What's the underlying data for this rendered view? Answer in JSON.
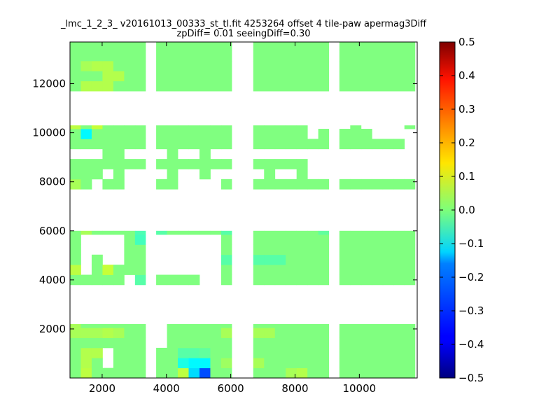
{
  "chart_data": {
    "type": "heatmap",
    "title": "_lmc_1_2_3_ v20161013_00333_st_tl.fit 4253264 offset 4 tile-paw apermag3Diff",
    "subtitle": "zpDiff= 0.01 seeingDiff=0.30",
    "xlabel": "",
    "ylabel": "",
    "xlim": [
      1000,
      11800
    ],
    "ylim": [
      0,
      13700
    ],
    "xticks": [
      2000,
      4000,
      6000,
      8000,
      10000
    ],
    "yticks": [
      2000,
      4000,
      6000,
      8000,
      10000,
      12000
    ],
    "colorbar": {
      "colormap": "jet",
      "vmin": -0.5,
      "vmax": 0.5,
      "ticks": [
        -0.5,
        -0.4,
        -0.3,
        -0.2,
        -0.1,
        0.0,
        0.1,
        0.2,
        0.3,
        0.4,
        0.5
      ],
      "tick_labels": [
        "−0.5",
        "−0.4",
        "−0.3",
        "−0.2",
        "−0.1",
        "0.0",
        "0.1",
        "0.2",
        "0.3",
        "0.4",
        "0.5"
      ]
    },
    "cell_width": 337,
    "cell_height": 410,
    "grid": false,
    "block_x_ranges": [
      [
        1000,
        3350
      ],
      [
        3680,
        6030
      ],
      [
        6700,
        9050
      ],
      [
        9380,
        11730
      ]
    ],
    "block_y_ranges": [
      [
        0,
        2200
      ],
      [
        3800,
        6000
      ],
      [
        7700,
        10300
      ],
      [
        11700,
        13700
      ]
    ],
    "base_value": 0.0,
    "missing_cells": [
      [
        1,
        10
      ],
      [
        1,
        11
      ],
      [
        1,
        12
      ],
      [
        1,
        13
      ],
      [
        2,
        12
      ],
      [
        2,
        13
      ],
      [
        3,
        11
      ],
      [
        3,
        12
      ],
      [
        3,
        13
      ],
      [
        4,
        11
      ],
      [
        4,
        12
      ],
      [
        4,
        13
      ],
      [
        8,
        3
      ],
      [
        8,
        4
      ],
      [
        8,
        5
      ],
      [
        8,
        10
      ],
      [
        8,
        11
      ],
      [
        8,
        12
      ],
      [
        8,
        13
      ],
      [
        9,
        10
      ],
      [
        9,
        11
      ],
      [
        9,
        12
      ],
      [
        9,
        13
      ],
      [
        10,
        10
      ],
      [
        10,
        11
      ],
      [
        10,
        12
      ],
      [
        10,
        13
      ],
      [
        11,
        10
      ],
      [
        11,
        11
      ],
      [
        11,
        12
      ],
      [
        11,
        13
      ],
      [
        12,
        9
      ],
      [
        12,
        10
      ],
      [
        12,
        11
      ],
      [
        12,
        12
      ],
      [
        12,
        13
      ],
      [
        13,
        9
      ],
      [
        13,
        10
      ],
      [
        13,
        11
      ],
      [
        13,
        12
      ],
      [
        13,
        13
      ],
      [
        3,
        1
      ],
      [
        3,
        2
      ],
      [
        5,
        7
      ],
      [
        5,
        8
      ],
      [
        5,
        9
      ],
      [
        4,
        27
      ],
      [
        5,
        27
      ],
      [
        6,
        27
      ],
      [
        7,
        27
      ],
      [
        8,
        27
      ],
      [
        12,
        27
      ],
      [
        0,
        22
      ],
      [
        1,
        22
      ],
      [
        2,
        22
      ],
      [
        5,
        22
      ],
      [
        6,
        22
      ],
      [
        8,
        22
      ],
      [
        10,
        22
      ],
      [
        11,
        22
      ],
      [
        13,
        22
      ],
      [
        14,
        22
      ],
      [
        15,
        22
      ],
      [
        16,
        22
      ],
      [
        17,
        22
      ],
      [
        18,
        22
      ],
      [
        19,
        22
      ],
      [
        20,
        22
      ],
      [
        21,
        22
      ],
      [
        22,
        22
      ],
      [
        23,
        22
      ],
      [
        24,
        22
      ],
      [
        25,
        22
      ],
      [
        26,
        22
      ],
      [
        27,
        22
      ],
      [
        28,
        22
      ],
      [
        29,
        22
      ],
      [
        30,
        22
      ],
      [
        31,
        22
      ],
      [
        32,
        22
      ],
      [
        33,
        22
      ],
      [
        2,
        19
      ],
      [
        5,
        19
      ],
      [
        6,
        19
      ],
      [
        10,
        19
      ],
      [
        11,
        19
      ],
      [
        12,
        19
      ],
      [
        13,
        19
      ],
      [
        3,
        20
      ],
      [
        5,
        20
      ],
      [
        6,
        20
      ],
      [
        8,
        20
      ],
      [
        10,
        20
      ],
      [
        11,
        20
      ],
      [
        13,
        20
      ],
      [
        14,
        20
      ],
      [
        16,
        20
      ],
      [
        17,
        20
      ],
      [
        19,
        20
      ],
      [
        20,
        20
      ],
      [
        22,
        20
      ],
      [
        23,
        20
      ],
      [
        24,
        20
      ],
      [
        25,
        20
      ],
      [
        26,
        20
      ],
      [
        27,
        20
      ],
      [
        28,
        20
      ],
      [
        29,
        20
      ],
      [
        30,
        20
      ],
      [
        31,
        20
      ],
      [
        32,
        20
      ],
      [
        33,
        20
      ],
      [
        22,
        21
      ],
      [
        23,
        21
      ],
      [
        24,
        21
      ],
      [
        25,
        21
      ],
      [
        26,
        21
      ],
      [
        27,
        21
      ],
      [
        28,
        21
      ],
      [
        29,
        21
      ],
      [
        30,
        21
      ],
      [
        31,
        21
      ],
      [
        32,
        21
      ],
      [
        33,
        21
      ],
      [
        22,
        24
      ],
      [
        22,
        25
      ],
      [
        23,
        25
      ],
      [
        24,
        25
      ],
      [
        25,
        25
      ],
      [
        27,
        25
      ],
      [
        28,
        25
      ],
      [
        29,
        25
      ],
      [
        30,
        25
      ],
      [
        28,
        24
      ],
      [
        29,
        24
      ],
      [
        30,
        24
      ],
      [
        31,
        24
      ],
      [
        32,
        24
      ],
      [
        31,
        23
      ],
      [
        31,
        22
      ]
    ],
    "cell_values": [
      [
        10,
        0,
        0.06
      ],
      [
        11,
        1,
        -0.13
      ],
      [
        11,
        0,
        -0.16
      ],
      [
        12,
        0,
        -0.3
      ],
      [
        10,
        1,
        -0.1
      ],
      [
        12,
        1,
        -0.13
      ],
      [
        12,
        2,
        -0.03
      ],
      [
        10,
        2,
        -0.04
      ],
      [
        11,
        2,
        -0.04
      ],
      [
        3,
        1,
        0.06
      ],
      [
        1,
        0,
        0.06
      ],
      [
        1,
        1,
        0.05
      ],
      [
        1,
        2,
        0.05
      ],
      [
        2,
        2,
        0.05
      ],
      [
        1,
        15,
        0.05
      ],
      [
        1,
        14,
        0.04
      ],
      [
        2,
        12,
        0.04
      ],
      [
        7,
        12,
        -0.06
      ],
      [
        7,
        13,
        -0.07
      ],
      [
        8,
        13,
        -0.05
      ],
      [
        8,
        12,
        -0.04
      ],
      [
        6,
        13,
        -0.06
      ],
      [
        4,
        12,
        0.05
      ],
      [
        11,
        7,
        0.08
      ],
      [
        0,
        4,
        0.04
      ],
      [
        0,
        5,
        0.04
      ],
      [
        1,
        4,
        0.04
      ],
      [
        2,
        4,
        0.04
      ],
      [
        3,
        4,
        0.05
      ],
      [
        4,
        4,
        0.04
      ],
      [
        0,
        8,
        0.03
      ],
      [
        2,
        8,
        0.04
      ],
      [
        0,
        10,
        0.06
      ],
      [
        3,
        10,
        0.07
      ],
      [
        1,
        13,
        0.05
      ],
      [
        2,
        13,
        0.05
      ],
      [
        0,
        19,
        0.04
      ],
      [
        0,
        18,
        0.04
      ],
      [
        1,
        18,
        0.04
      ],
      [
        2,
        18,
        0.05
      ],
      [
        3,
        18,
        0.05
      ],
      [
        4,
        17,
        0.05
      ],
      [
        0,
        17,
        0.05
      ],
      [
        1,
        16,
        0.04
      ],
      [
        2,
        16,
        0.05
      ],
      [
        3,
        16,
        0.05
      ],
      [
        0,
        25,
        0.06
      ],
      [
        2,
        25,
        0.07
      ],
      [
        1,
        24,
        -0.13
      ],
      [
        0,
        26,
        0.04
      ],
      [
        1,
        26,
        0.04
      ],
      [
        2,
        26,
        0.05
      ],
      [
        1,
        29,
        0.05
      ],
      [
        2,
        29,
        0.05
      ],
      [
        3,
        29,
        0.05
      ],
      [
        3,
        30,
        0.05
      ],
      [
        4,
        30,
        0.05
      ],
      [
        1,
        31,
        0.04
      ],
      [
        2,
        31,
        0.05
      ],
      [
        3,
        31,
        0.05
      ],
      [
        6,
        26,
        0.03
      ],
      [
        9,
        26,
        0.03
      ],
      [
        10,
        26,
        0.04
      ],
      [
        14,
        26,
        0.03
      ],
      [
        15,
        26,
        0.04
      ],
      [
        16,
        26,
        0.04
      ],
      [
        18,
        26,
        0.03
      ],
      [
        19,
        26,
        0.05
      ],
      [
        20,
        26,
        0.04
      ],
      [
        21,
        26,
        0.04
      ],
      [
        22,
        26,
        0.03
      ],
      [
        25,
        26,
        0.03
      ],
      [
        6,
        15,
        -0.04
      ],
      [
        7,
        15,
        -0.05
      ],
      [
        8,
        15,
        -0.04
      ],
      [
        9,
        15,
        -0.04
      ],
      [
        10,
        15,
        -0.04
      ],
      [
        11,
        15,
        -0.04
      ],
      [
        6,
        14,
        -0.05
      ],
      [
        7,
        14,
        -0.05
      ],
      [
        8,
        14,
        -0.04
      ],
      [
        15,
        15,
        -0.04
      ],
      [
        16,
        15,
        -0.04
      ],
      [
        17,
        15,
        -0.04
      ],
      [
        18,
        15,
        -0.04
      ],
      [
        19,
        15,
        -0.1
      ],
      [
        14,
        14,
        -0.04
      ],
      [
        15,
        14,
        -0.05
      ],
      [
        16,
        14,
        -0.04
      ],
      [
        23,
        14,
        -0.03
      ],
      [
        24,
        14,
        -0.03
      ],
      [
        6,
        8,
        -0.04
      ],
      [
        7,
        8,
        -0.05
      ],
      [
        8,
        8,
        -0.04
      ],
      [
        6,
        9,
        -0.04
      ],
      [
        7,
        9,
        -0.04
      ],
      [
        10,
        8,
        -0.03
      ],
      [
        14,
        4,
        0.04
      ],
      [
        17,
        4,
        0.04
      ],
      [
        18,
        4,
        0.04
      ],
      [
        15,
        6,
        0.05
      ],
      [
        16,
        6,
        0.05
      ],
      [
        15,
        5,
        0.04
      ],
      [
        22,
        6,
        0.02
      ],
      [
        23,
        7,
        0.03
      ],
      [
        24,
        7,
        0.02
      ],
      [
        14,
        11,
        -0.04
      ],
      [
        15,
        11,
        -0.04
      ],
      [
        16,
        11,
        -0.05
      ],
      [
        17,
        11,
        -0.04
      ],
      [
        18,
        11,
        -0.04
      ],
      [
        19,
        11,
        -0.04
      ],
      [
        24,
        11,
        0.08
      ],
      [
        20,
        0,
        0.04
      ],
      [
        21,
        0,
        0.05
      ],
      [
        15,
        0,
        0.05
      ],
      [
        16,
        1,
        0.04
      ],
      [
        17,
        1,
        0.04
      ],
      [
        14,
        1,
        0.03
      ],
      [
        15,
        1,
        0.04
      ],
      [
        4,
        18,
        0.03
      ],
      [
        4,
        16,
        0.05
      ],
      [
        4,
        15,
        0.05
      ],
      [
        3,
        15,
        0.05
      ],
      [
        2,
        15,
        0.05
      ]
    ]
  }
}
